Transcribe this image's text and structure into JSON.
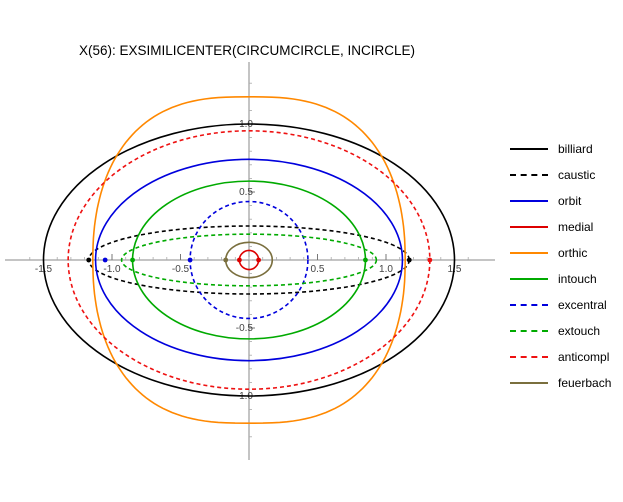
{
  "chart_data": {
    "type": "line",
    "title": "X(56): EXSIMILICENTER(CIRCUMCIRCLE, INCIRCLE)",
    "xlim": [
      -1.65,
      1.65
    ],
    "ylim": [
      -1.32,
      1.32
    ],
    "x_ticks": [
      {
        "value": -1.5,
        "label": "-1.5"
      },
      {
        "value": -1.0,
        "label": "-1.0"
      },
      {
        "value": -0.5,
        "label": "-0.5"
      },
      {
        "value": 0.5,
        "label": "0.5"
      },
      {
        "value": 1.0,
        "label": "1.0"
      },
      {
        "value": 1.5,
        "label": "1.5"
      }
    ],
    "y_ticks": [
      {
        "value": 1.0,
        "label": "1.0"
      },
      {
        "value": 0.5,
        "label": "0.5"
      },
      {
        "value": -0.5,
        "label": "-0.5"
      },
      {
        "value": -1.0,
        "label": "-1.0"
      }
    ],
    "legend_position": "right",
    "series": [
      {
        "name": "billiard",
        "color": "#000000",
        "dash": false,
        "shape": "ellipse",
        "a": 1.5,
        "b": 1.0
      },
      {
        "name": "caustic",
        "color": "#000000",
        "dash": true,
        "shape": "ellipse",
        "a": 1.17,
        "b": 0.25
      },
      {
        "name": "orbit",
        "color": "#0000dd",
        "dash": false,
        "shape": "ellipse",
        "a": 1.12,
        "b": 0.74
      },
      {
        "name": "medial",
        "color": "#dd0000",
        "dash": false,
        "shape": "ellipse",
        "a": 0.07,
        "b": 0.07
      },
      {
        "name": "orthic",
        "color": "#ff8800",
        "dash": false,
        "shape": "orthic",
        "a": 1.14,
        "b": 1.2
      },
      {
        "name": "intouch",
        "color": "#00aa00",
        "dash": false,
        "shape": "ellipse",
        "a": 0.85,
        "b": 0.58
      },
      {
        "name": "excentral",
        "color": "#0000dd",
        "dash": true,
        "shape": "ellipse",
        "a": 0.43,
        "b": 0.43
      },
      {
        "name": "extouch",
        "color": "#00aa00",
        "dash": true,
        "shape": "ellipse",
        "a": 0.93,
        "b": 0.19
      },
      {
        "name": "anticompl",
        "color": "#ee1111",
        "dash": true,
        "shape": "ellipse",
        "a": 1.32,
        "b": 0.95
      },
      {
        "name": "feuerbach",
        "color": "#7a6f3e",
        "dash": false,
        "shape": "ellipse",
        "a": 0.17,
        "b": 0.13
      }
    ],
    "markers": [
      {
        "x": -1.17,
        "y": 0,
        "color": "#000000"
      },
      {
        "x": 1.17,
        "y": 0,
        "color": "#000000"
      },
      {
        "x": -1.05,
        "y": 0,
        "color": "#0000dd"
      },
      {
        "x": -0.43,
        "y": 0,
        "color": "#0000dd"
      },
      {
        "x": -0.85,
        "y": 0,
        "color": "#00aa00"
      },
      {
        "x": 0.85,
        "y": 0,
        "color": "#00aa00"
      },
      {
        "x": -0.07,
        "y": 0,
        "color": "#dd0000"
      },
      {
        "x": 0.07,
        "y": 0,
        "color": "#dd0000"
      },
      {
        "x": 1.32,
        "y": 0,
        "color": "#ee1111"
      },
      {
        "x": -0.17,
        "y": 0,
        "color": "#7a6f3e"
      }
    ]
  }
}
